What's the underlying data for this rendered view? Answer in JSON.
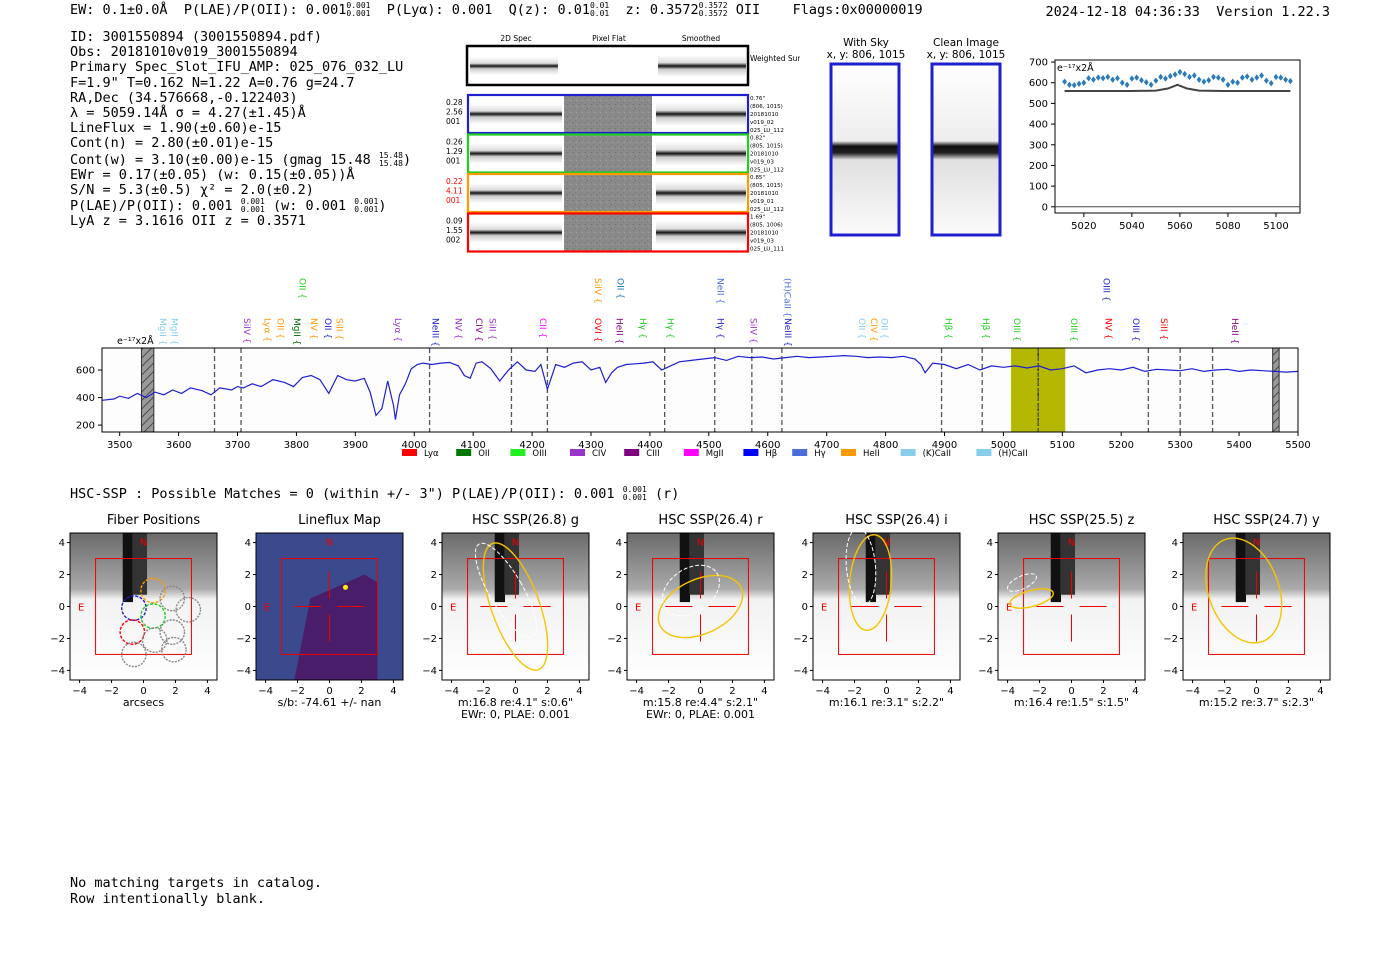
{
  "header": {
    "ew": "EW: 0.1±0.0Å",
    "plae_label": "P(LAE)/P(OII): 0.001",
    "plae_hi": "0.001",
    "plae_lo": "0.001",
    "plya": "P(Lyα): 0.001",
    "qz_label": "Q(z): 0.01",
    "qz_hi": "0.01",
    "qz_lo": "0.01",
    "z_label": "z: 0.3572",
    "z_hi": "0.3572",
    "z_lo": "0.3572",
    "z_line": "OII",
    "flags": "Flags:0x00000019",
    "datetime": "2024-12-18 04:36:33",
    "version": "Version 1.22.3"
  },
  "info": {
    "id": "ID: 3001550894 (3001550894.pdf)",
    "obs": "Obs: 20181010v019_3001550894",
    "primary": "Primary Spec_Slot_IFU_AMP: 025_076_032_LU",
    "fline": "F=1.9\"  T=0.162  N=1.22  A=0.76  g=24.7",
    "radec": "RA,Dec (34.576668,-0.122403)",
    "lambda": "λ = 5059.14Å  σ = 4.27(±1.45)Å",
    "lineflux": "LineFlux = 1.90(±0.60)e-15",
    "contn": "Cont(n) = 2.80(±0.01)e-15",
    "contw": "Cont(w) = 3.10(±0.00)e-15 (gmag 15.48",
    "contw_hi": "15.48",
    "contw_lo": "15.48",
    "ewr": "EWr = 0.17(±0.05) (w: 0.15(±0.05))Å",
    "sn": "S/N = 5.3(±0.5)  χ² = 2.0(±0.2)",
    "plae": "P(LAE)/P(OII): 0.001",
    "plae_hi": "0.001",
    "plae_lo": "0.001",
    "plae_w": "(w: 0.001",
    "plae_w_hi": "0.001",
    "plae_w_lo": "0.001",
    "lya": "LyA z = 3.1616  OII z = 0.3571"
  },
  "cutouts_2d": {
    "col_labels": [
      "2D Spec",
      "Pixel Flat",
      "Smoothed"
    ],
    "weighted_label": "Weighted Sum",
    "rows": [
      {
        "left": [
          "0.28",
          "2.56",
          "001"
        ],
        "right": [
          "0.76\"",
          "(806, 1015)",
          "20181010",
          "v019_02",
          "025_LU_112"
        ],
        "color": "#1f1fd0",
        "left_color": "#000000"
      },
      {
        "left": [
          "0.26",
          "1.29",
          "001"
        ],
        "right": [
          "0.82\"",
          "(805, 1015)",
          "20181010",
          "v019_03",
          "025_LU_112"
        ],
        "color": "#22cc22",
        "left_color": "#000000"
      },
      {
        "left": [
          "0.22",
          "4.11",
          "001"
        ],
        "right": [
          "0.85\"",
          "(805, 1015)",
          "20181010",
          "v019_01",
          "025_LU_112"
        ],
        "color": "#ff9900",
        "left_color": "#ff0000"
      },
      {
        "left": [
          "0.09",
          "1.55",
          "002"
        ],
        "right": [
          "1.69\"",
          "(805, 1006)",
          "20181010",
          "v019_03",
          "025_LU_111"
        ],
        "color": "#ff0000",
        "left_color": "#000000"
      }
    ]
  },
  "sky_panels": {
    "with_sky": {
      "title": "With Sky",
      "coords": "x, y: 806, 1015"
    },
    "clean": {
      "title": "Clean Image",
      "coords": "x, y: 806, 1015"
    }
  },
  "chart_data": [
    {
      "type": "scatter",
      "id": "zoom-spectrum",
      "unit_label": "e⁻¹⁷x2Å",
      "xlim": [
        5008,
        5110
      ],
      "ylim": [
        -30,
        710
      ],
      "xticks": [
        5020,
        5040,
        5060,
        5080,
        5100
      ],
      "yticks": [
        0,
        100,
        200,
        300,
        400,
        500,
        600,
        700
      ],
      "points_x": [
        5012,
        5014,
        5016,
        5018,
        5020,
        5022,
        5024,
        5026,
        5028,
        5030,
        5032,
        5034,
        5036,
        5038,
        5040,
        5042,
        5044,
        5046,
        5048,
        5050,
        5052,
        5054,
        5056,
        5058,
        5060,
        5062,
        5064,
        5066,
        5068,
        5070,
        5072,
        5074,
        5076,
        5078,
        5080,
        5082,
        5084,
        5086,
        5088,
        5090,
        5092,
        5094,
        5096,
        5098,
        5100,
        5102,
        5104,
        5106
      ],
      "points_y": [
        605,
        590,
        588,
        595,
        600,
        622,
        615,
        625,
        622,
        628,
        615,
        622,
        600,
        590,
        620,
        625,
        612,
        602,
        590,
        610,
        628,
        620,
        632,
        640,
        652,
        642,
        628,
        635,
        615,
        605,
        612,
        628,
        625,
        615,
        590,
        605,
        600,
        625,
        630,
        615,
        625,
        635,
        610,
        598,
        628,
        625,
        615,
        608
      ],
      "model_x": [
        5012,
        5040,
        5050,
        5055,
        5059,
        5063,
        5068,
        5078,
        5106
      ],
      "model_y": [
        560,
        560,
        562,
        572,
        590,
        572,
        562,
        560,
        560
      ]
    },
    {
      "type": "line",
      "id": "full-spectrum",
      "unit_label": "e⁻¹⁷x2Å",
      "xlim": [
        3470,
        5500
      ],
      "ylim": [
        150,
        760
      ],
      "xticks": [
        3500,
        3600,
        3700,
        3800,
        3900,
        4000,
        4100,
        4200,
        4300,
        4400,
        4500,
        4600,
        4700,
        4800,
        4900,
        5000,
        5100,
        5200,
        5300,
        5400,
        5500
      ],
      "yticks": [
        200,
        400,
        600
      ],
      "x": [
        3470,
        3490,
        3500,
        3515,
        3530,
        3545,
        3560,
        3575,
        3590,
        3605,
        3620,
        3640,
        3655,
        3670,
        3690,
        3700,
        3710,
        3725,
        3740,
        3760,
        3780,
        3795,
        3810,
        3825,
        3840,
        3855,
        3870,
        3885,
        3900,
        3915,
        3925,
        3935,
        3945,
        3955,
        3965,
        3968,
        3975,
        3985,
        3995,
        4005,
        4015,
        4030,
        4045,
        4060,
        4075,
        4085,
        4095,
        4105,
        4115,
        4130,
        4145,
        4160,
        4175,
        4190,
        4205,
        4215,
        4226,
        4240,
        4255,
        4270,
        4285,
        4300,
        4315,
        4325,
        4335,
        4345,
        4360,
        4375,
        4390,
        4405,
        4420,
        4435,
        4450,
        4470,
        4490,
        4510,
        4530,
        4550,
        4570,
        4590,
        4610,
        4630,
        4650,
        4670,
        4690,
        4710,
        4730,
        4750,
        4770,
        4790,
        4810,
        4830,
        4850,
        4860,
        4867,
        4880,
        4900,
        4920,
        4940,
        4960,
        4980,
        5000,
        5020,
        5040,
        5060,
        5080,
        5100,
        5120,
        5140,
        5160,
        5180,
        5200,
        5220,
        5240,
        5260,
        5280,
        5300,
        5320,
        5340,
        5360,
        5380,
        5400,
        5420,
        5440,
        5460,
        5480,
        5500
      ],
      "y": [
        380,
        390,
        410,
        395,
        430,
        400,
        440,
        420,
        455,
        430,
        470,
        450,
        420,
        470,
        455,
        480,
        470,
        500,
        480,
        530,
        510,
        480,
        545,
        560,
        530,
        430,
        560,
        530,
        520,
        540,
        440,
        270,
        320,
        520,
        340,
        240,
        420,
        500,
        610,
        640,
        650,
        640,
        650,
        655,
        630,
        560,
        540,
        650,
        660,
        610,
        520,
        600,
        660,
        600,
        590,
        640,
        460,
        640,
        620,
        650,
        660,
        600,
        620,
        510,
        580,
        620,
        640,
        645,
        650,
        660,
        600,
        630,
        660,
        670,
        680,
        690,
        670,
        700,
        690,
        695,
        680,
        690,
        700,
        690,
        695,
        700,
        705,
        700,
        690,
        695,
        690,
        700,
        680,
        640,
        580,
        650,
        640,
        610,
        640,
        600,
        630,
        620,
        630,
        615,
        630,
        600,
        610,
        630,
        580,
        600,
        610,
        600,
        620,
        590,
        605,
        600,
        595,
        610,
        590,
        600,
        605,
        590,
        600,
        595,
        590,
        585,
        590
      ],
      "bands": [
        {
          "name": "skyline",
          "xmin": 3537,
          "xmax": 3558,
          "style": "hatch"
        },
        {
          "name": "skyline",
          "xmin": 5457,
          "xmax": 5468,
          "style": "hatch"
        },
        {
          "name": "detection",
          "xmin": 5013,
          "xmax": 5105,
          "style": "fill",
          "color": "#b5b800"
        }
      ],
      "vlines": [
        3661,
        3706,
        4026,
        4165,
        4226,
        4425,
        4510,
        4573,
        4624,
        4895,
        4964,
        5059,
        5246,
        5300,
        5355
      ],
      "emission_lines_upper": [
        {
          "label": "OII",
          "x": 3800,
          "color": "#22cc22"
        },
        {
          "label": "SiIV",
          "x": 4302,
          "color": "#ff9900"
        },
        {
          "label": "OII",
          "x": 4340,
          "color": "#1f77b4"
        },
        {
          "label": "NeII",
          "x": 4510,
          "color": "#4a6fdc"
        },
        {
          "label": "(H)CaII",
          "x": 4623,
          "color": "#4a6fdc"
        },
        {
          "label": "OIII",
          "x": 5165,
          "color": "#1f1fd0"
        }
      ],
      "emission_lines_lower": [
        {
          "label": "MgII",
          "x": 3563,
          "color": "#87ceeb"
        },
        {
          "label": "MgII",
          "x": 3583,
          "color": "#87ceeb"
        },
        {
          "label": "SiIV",
          "x": 3706,
          "color": "#9933cc"
        },
        {
          "label": "Lyα",
          "x": 3741,
          "color": "#ff9900"
        },
        {
          "label": "OII",
          "x": 3763,
          "color": "#ff9900"
        },
        {
          "label": "MgII",
          "x": 3791,
          "color": "#006600"
        },
        {
          "label": "NV",
          "x": 3820,
          "color": "#ff9900"
        },
        {
          "label": "OII",
          "x": 3843,
          "color": "#1f1fd0"
        },
        {
          "label": "SiII",
          "x": 3863,
          "color": "#ff9900"
        },
        {
          "label": "Lyα",
          "x": 3962,
          "color": "#9933cc"
        },
        {
          "label": "NeIII",
          "x": 4026,
          "color": "#1f1fd0"
        },
        {
          "label": "NV",
          "x": 4065,
          "color": "#9933cc"
        },
        {
          "label": "CIV",
          "x": 4100,
          "color": "#800080"
        },
        {
          "label": "SiII",
          "x": 4123,
          "color": "#9933cc"
        },
        {
          "label": "CII",
          "x": 4208,
          "color": "#ff00ff"
        },
        {
          "label": "OVI",
          "x": 4302,
          "color": "#ff0000"
        },
        {
          "label": "HeII",
          "x": 4338,
          "color": "#800080"
        },
        {
          "label": "Hγ",
          "x": 4378,
          "color": "#22cc22"
        },
        {
          "label": "Hγ",
          "x": 4425,
          "color": "#22cc22"
        },
        {
          "label": "Hγ",
          "x": 4510,
          "color": "#1f1fd0"
        },
        {
          "label": "SiIV",
          "x": 4566,
          "color": "#9933cc"
        },
        {
          "label": "NeIII",
          "x": 4624,
          "color": "#1f1fd0"
        },
        {
          "label": "OII",
          "x": 4750,
          "color": "#87ceeb"
        },
        {
          "label": "CIV",
          "x": 4770,
          "color": "#ff9900"
        },
        {
          "label": "OII",
          "x": 4788,
          "color": "#87ceeb"
        },
        {
          "label": "Hβ",
          "x": 4897,
          "color": "#22cc22"
        },
        {
          "label": "Hβ",
          "x": 4960,
          "color": "#22cc22"
        },
        {
          "label": "OIII",
          "x": 5013,
          "color": "#22cc22"
        },
        {
          "label": "OIII",
          "x": 5110,
          "color": "#22cc22"
        },
        {
          "label": "NV",
          "x": 5168,
          "color": "#ff0000"
        },
        {
          "label": "OIII",
          "x": 5215,
          "color": "#1f1fd0"
        },
        {
          "label": "SiII",
          "x": 5262,
          "color": "#ff0000"
        },
        {
          "label": "HeII",
          "x": 5383,
          "color": "#800080"
        }
      ],
      "legend": [
        {
          "label": "Lyα",
          "color": "#ff0000"
        },
        {
          "label": "OII",
          "color": "#007700"
        },
        {
          "label": "OIII",
          "color": "#22ee22"
        },
        {
          "label": "CIV",
          "color": "#9933cc"
        },
        {
          "label": "CIII",
          "color": "#800080"
        },
        {
          "label": "MgII",
          "color": "#ff00ff"
        },
        {
          "label": "Hβ",
          "color": "#0000ff"
        },
        {
          "label": "Hγ",
          "color": "#4a6fdc"
        },
        {
          "label": "HeII",
          "color": "#ff9900"
        },
        {
          "label": "(K)CaII",
          "color": "#87ceeb"
        },
        {
          "label": "(H)CaII",
          "color": "#87ceeb"
        }
      ]
    }
  ],
  "hsc": {
    "title": "HSC-SSP : Possible Matches = 0 (within +/- 3\")  P(LAE)/P(OII): 0.001",
    "title_hi": "0.001",
    "title_lo": "0.001",
    "title_band": "(r)",
    "axis_ticks": [
      "4",
      "2",
      "0",
      "−2",
      "−4"
    ],
    "x_ticks": [
      "−4",
      "−2",
      "0",
      "2",
      "4"
    ],
    "compass_n": "N",
    "compass_e": "E",
    "panels": [
      {
        "title": "Fiber Positions",
        "sub1": "arcsecs",
        "sub2": ""
      },
      {
        "title": "Lineflux Map",
        "sub1": "s/b: -74.61 +/- nan",
        "sub2": ""
      },
      {
        "title": "HSC SSP(26.8) g",
        "sub1": "m:16.8  re:4.1\"  s:0.6\"",
        "sub2": "EWr: 0, PLAE: 0.001"
      },
      {
        "title": "HSC SSP(26.4) r",
        "sub1": "m:15.8  re:4.4\"  s:2.1\"",
        "sub2": "EWr: 0, PLAE: 0.001"
      },
      {
        "title": "HSC SSP(26.4) i",
        "sub1": "m:16.1  re:3.1\"  s:2.2\"",
        "sub2": ""
      },
      {
        "title": "HSC SSP(25.5) z",
        "sub1": "m:16.4  re:1.5\"  s:1.5\"",
        "sub2": ""
      },
      {
        "title": "HSC SSP(24.7) y",
        "sub1": "m:15.2  re:3.7\"  s:2.3\"",
        "sub2": ""
      }
    ]
  },
  "footer": {
    "line1": "No matching targets in catalog.",
    "line2": "Row intentionally blank."
  }
}
